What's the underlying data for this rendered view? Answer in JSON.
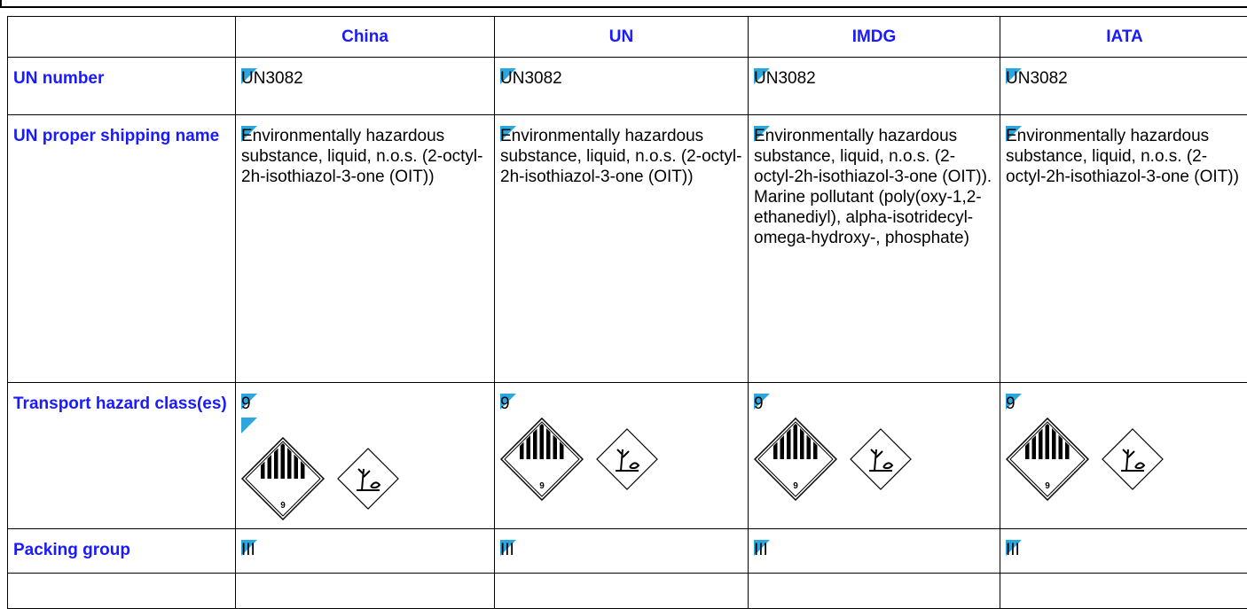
{
  "table": {
    "columns": [
      "China",
      "UN",
      "IMDG",
      "IATA"
    ],
    "rows": [
      {
        "label": "UN number",
        "cells": [
          "UN3082",
          "UN3082",
          "UN3082",
          "UN3082"
        ]
      },
      {
        "label": "UN proper shipping name",
        "cells": [
          "Environmentally hazardous substance, liquid, n.o.s. (2-octyl-2h-isothiazol-3-one (OIT))",
          "Environmentally hazardous substance, liquid, n.o.s. (2-octyl-2h-isothiazol-3-one (OIT))",
          "Environmentally hazardous substance, liquid, n.o.s. (2-octyl-2h-isothiazol-3-one (OIT)). Marine pollutant (poly(oxy-1,2-ethanediyl), alpha-isotridecyl-omega-hydroxy-, phosphate)",
          "Environmentally hazardous substance, liquid, n.o.s. (2-octyl-2h-isothiazol-3-one (OIT))"
        ]
      },
      {
        "label": "Transport hazard class(es)",
        "cells": [
          "9",
          "9",
          "9",
          "9"
        ],
        "pictogram_label": "9"
      },
      {
        "label": "Packing group",
        "cells": [
          "III",
          "III",
          "III",
          "III"
        ]
      }
    ]
  }
}
